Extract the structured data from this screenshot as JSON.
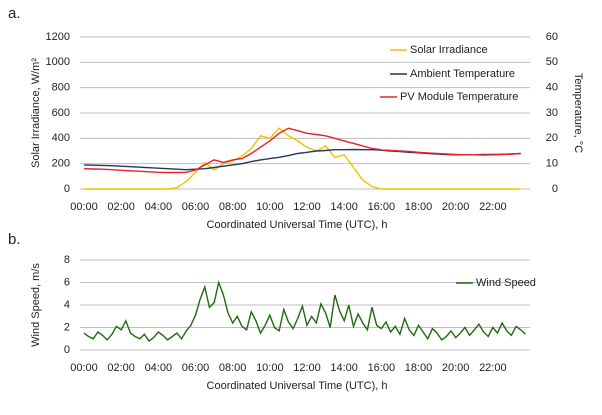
{
  "chart_data": [
    {
      "type": "line",
      "panel_label": "a.",
      "y_label": "Solar Irradiance, W/m²",
      "y2_label": "Temperature, °C",
      "x_label": "Coordinated Universal Time (UTC), h",
      "x": [
        0,
        0.5,
        1,
        1.5,
        2,
        2.5,
        3,
        3.5,
        4,
        4.5,
        5,
        5.5,
        6,
        6.5,
        7,
        7.5,
        8,
        8.5,
        9,
        9.5,
        10,
        10.5,
        11,
        11.5,
        12,
        12.5,
        13,
        13.5,
        14,
        14.5,
        15,
        15.5,
        16,
        16.5,
        17,
        17.5,
        18,
        18.5,
        19,
        19.5,
        20,
        20.5,
        21,
        21.5,
        22,
        22.5,
        23,
        23.5
      ],
      "xlim": [
        0,
        24
      ],
      "xticks": [
        {
          "value": 0,
          "label": "00:00"
        },
        {
          "value": 2,
          "label": "02:00"
        },
        {
          "value": 4,
          "label": "04:00"
        },
        {
          "value": 6,
          "label": "06:00"
        },
        {
          "value": 8,
          "label": "08:00"
        },
        {
          "value": 10,
          "label": "10:00"
        },
        {
          "value": 12,
          "label": "12:00"
        },
        {
          "value": 14,
          "label": "14:00"
        },
        {
          "value": 16,
          "label": "16:00"
        },
        {
          "value": 18,
          "label": "18:00"
        },
        {
          "value": 20,
          "label": "20:00"
        },
        {
          "value": 22,
          "label": "22:00"
        }
      ],
      "ylim": [
        0,
        1200
      ],
      "yticks": [
        0,
        200,
        400,
        600,
        800,
        1000,
        1200
      ],
      "y2lim": [
        0,
        60
      ],
      "y2ticks": [
        0,
        10,
        20,
        30,
        40,
        50,
        60
      ],
      "grid": true,
      "series": [
        {
          "name": "Solar Irradiance",
          "color": "#f2c200",
          "axis": "y",
          "values": [
            0,
            0,
            0,
            0,
            0,
            0,
            0,
            0,
            0,
            0,
            10,
            60,
            130,
            210,
            150,
            200,
            220,
            260,
            320,
            420,
            400,
            480,
            420,
            380,
            330,
            300,
            340,
            250,
            270,
            170,
            70,
            20,
            0,
            0,
            0,
            0,
            0,
            0,
            0,
            0,
            0,
            0,
            0,
            0,
            0,
            0,
            0,
            0
          ]
        },
        {
          "name": "Ambient Temperature",
          "color": "#1f3864",
          "axis": "y2",
          "values": [
            9.5,
            9.4,
            9.3,
            9.2,
            9.0,
            8.8,
            8.6,
            8.4,
            8.2,
            8.0,
            7.8,
            7.6,
            7.8,
            8.0,
            8.5,
            9.0,
            9.5,
            10.0,
            10.8,
            11.5,
            12.0,
            12.5,
            13.2,
            14.0,
            14.5,
            15.0,
            15.2,
            15.5,
            15.5,
            15.6,
            15.5,
            15.5,
            15.3,
            15.0,
            14.8,
            14.5,
            14.3,
            14.0,
            13.8,
            13.6,
            13.5,
            13.5,
            13.5,
            13.6,
            13.6,
            13.7,
            13.8,
            14.0
          ]
        },
        {
          "name": "PV Module Temperature",
          "color": "#e8202a",
          "axis": "y2",
          "values": [
            8.0,
            7.9,
            7.8,
            7.6,
            7.4,
            7.2,
            7.0,
            6.8,
            6.6,
            6.5,
            6.5,
            6.6,
            7.5,
            9.5,
            11.5,
            10.5,
            11.5,
            12.0,
            14.0,
            16.5,
            19.0,
            22.0,
            24.0,
            23.0,
            22.0,
            21.5,
            21.0,
            20.0,
            19.0,
            18.0,
            17.0,
            16.0,
            15.5,
            15.2,
            15.0,
            14.8,
            14.5,
            14.2,
            14.0,
            13.8,
            13.6,
            13.5,
            13.5,
            13.4,
            13.5,
            13.6,
            13.8,
            14.0
          ]
        }
      ]
    },
    {
      "type": "line",
      "panel_label": "b.",
      "y_label": "Wind Speed, m/s",
      "x_label": "Coordinated Universal Time (UTC), h",
      "x": [
        0,
        0.25,
        0.5,
        0.75,
        1,
        1.25,
        1.5,
        1.75,
        2,
        2.25,
        2.5,
        2.75,
        3,
        3.25,
        3.5,
        3.75,
        4,
        4.25,
        4.5,
        4.75,
        5,
        5.25,
        5.5,
        5.75,
        6,
        6.25,
        6.5,
        6.75,
        7,
        7.25,
        7.5,
        7.75,
        8,
        8.25,
        8.5,
        8.75,
        9,
        9.25,
        9.5,
        9.75,
        10,
        10.25,
        10.5,
        10.75,
        11,
        11.25,
        11.5,
        11.75,
        12,
        12.25,
        12.5,
        12.75,
        13,
        13.25,
        13.5,
        13.75,
        14,
        14.25,
        14.5,
        14.75,
        15,
        15.25,
        15.5,
        15.75,
        16,
        16.25,
        16.5,
        16.75,
        17,
        17.25,
        17.5,
        17.75,
        18,
        18.25,
        18.5,
        18.75,
        19,
        19.25,
        19.5,
        19.75,
        20,
        20.25,
        20.5,
        20.75,
        21,
        21.25,
        21.5,
        21.75,
        22,
        22.25,
        22.5,
        22.75,
        23,
        23.25,
        23.5,
        23.75
      ],
      "xlim": [
        0,
        24
      ],
      "xticks": [
        {
          "value": 0,
          "label": "00:00"
        },
        {
          "value": 2,
          "label": "02:00"
        },
        {
          "value": 4,
          "label": "04:00"
        },
        {
          "value": 6,
          "label": "06:00"
        },
        {
          "value": 8,
          "label": "08:00"
        },
        {
          "value": 10,
          "label": "10:00"
        },
        {
          "value": 12,
          "label": "12:00"
        },
        {
          "value": 14,
          "label": "14:00"
        },
        {
          "value": 16,
          "label": "16:00"
        },
        {
          "value": 18,
          "label": "18:00"
        },
        {
          "value": 20,
          "label": "20:00"
        },
        {
          "value": 22,
          "label": "22:00"
        }
      ],
      "ylim": [
        0,
        8
      ],
      "yticks": [
        0,
        2,
        4,
        6,
        8
      ],
      "grid": true,
      "series": [
        {
          "name": "Wind Speed",
          "color": "#1e6b0f",
          "axis": "y",
          "values": [
            1.5,
            1.2,
            1.0,
            1.6,
            1.3,
            0.9,
            1.4,
            2.1,
            1.8,
            2.6,
            1.5,
            1.2,
            1.0,
            1.4,
            0.8,
            1.1,
            1.6,
            1.3,
            0.9,
            1.2,
            1.5,
            1.0,
            1.7,
            2.2,
            3.1,
            4.5,
            5.6,
            3.8,
            4.2,
            6.0,
            4.9,
            3.3,
            2.4,
            3.0,
            2.1,
            1.8,
            3.4,
            2.6,
            1.5,
            2.2,
            3.1,
            2.0,
            1.7,
            3.6,
            2.5,
            1.9,
            2.8,
            3.9,
            2.2,
            3.0,
            2.4,
            4.1,
            3.3,
            2.0,
            4.9,
            3.5,
            2.6,
            4.0,
            2.1,
            3.2,
            2.4,
            1.8,
            3.8,
            2.2,
            1.9,
            2.5,
            1.6,
            2.1,
            1.4,
            2.8,
            1.8,
            1.3,
            2.2,
            1.6,
            1.0,
            1.9,
            1.5,
            0.9,
            1.2,
            1.7,
            1.1,
            1.5,
            2.0,
            1.3,
            1.8,
            2.3,
            1.6,
            1.2,
            2.0,
            1.5,
            2.4,
            1.7,
            1.3,
            2.1,
            1.8,
            1.4
          ]
        }
      ]
    }
  ]
}
